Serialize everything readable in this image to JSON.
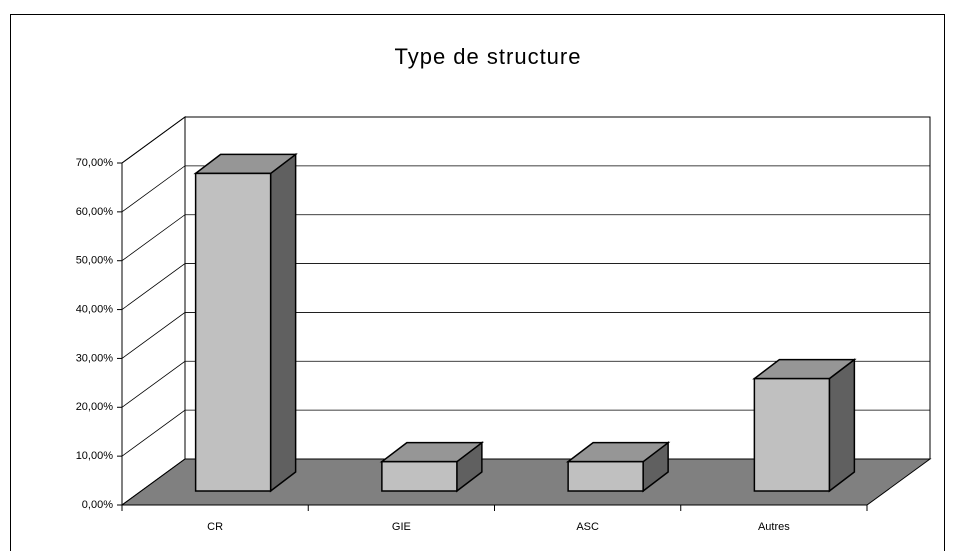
{
  "chart_data": {
    "type": "bar3d",
    "title": "Type de structure",
    "categories": [
      "CR",
      "GIE",
      "ASC",
      "Autres"
    ],
    "values": [
      65,
      6,
      6,
      23
    ],
    "color": "#c0c0c0",
    "ylim": [
      0,
      70
    ],
    "yticks": [
      {
        "value": 0,
        "label": "0,00%"
      },
      {
        "value": 10,
        "label": "10,00%"
      },
      {
        "value": 20,
        "label": "20,00%"
      },
      {
        "value": 30,
        "label": "30,00%"
      },
      {
        "value": 40,
        "label": "40,00%"
      },
      {
        "value": 50,
        "label": "50,00%"
      },
      {
        "value": 60,
        "label": "60,00%"
      },
      {
        "value": 70,
        "label": "70,00%"
      }
    ],
    "grid": true
  }
}
